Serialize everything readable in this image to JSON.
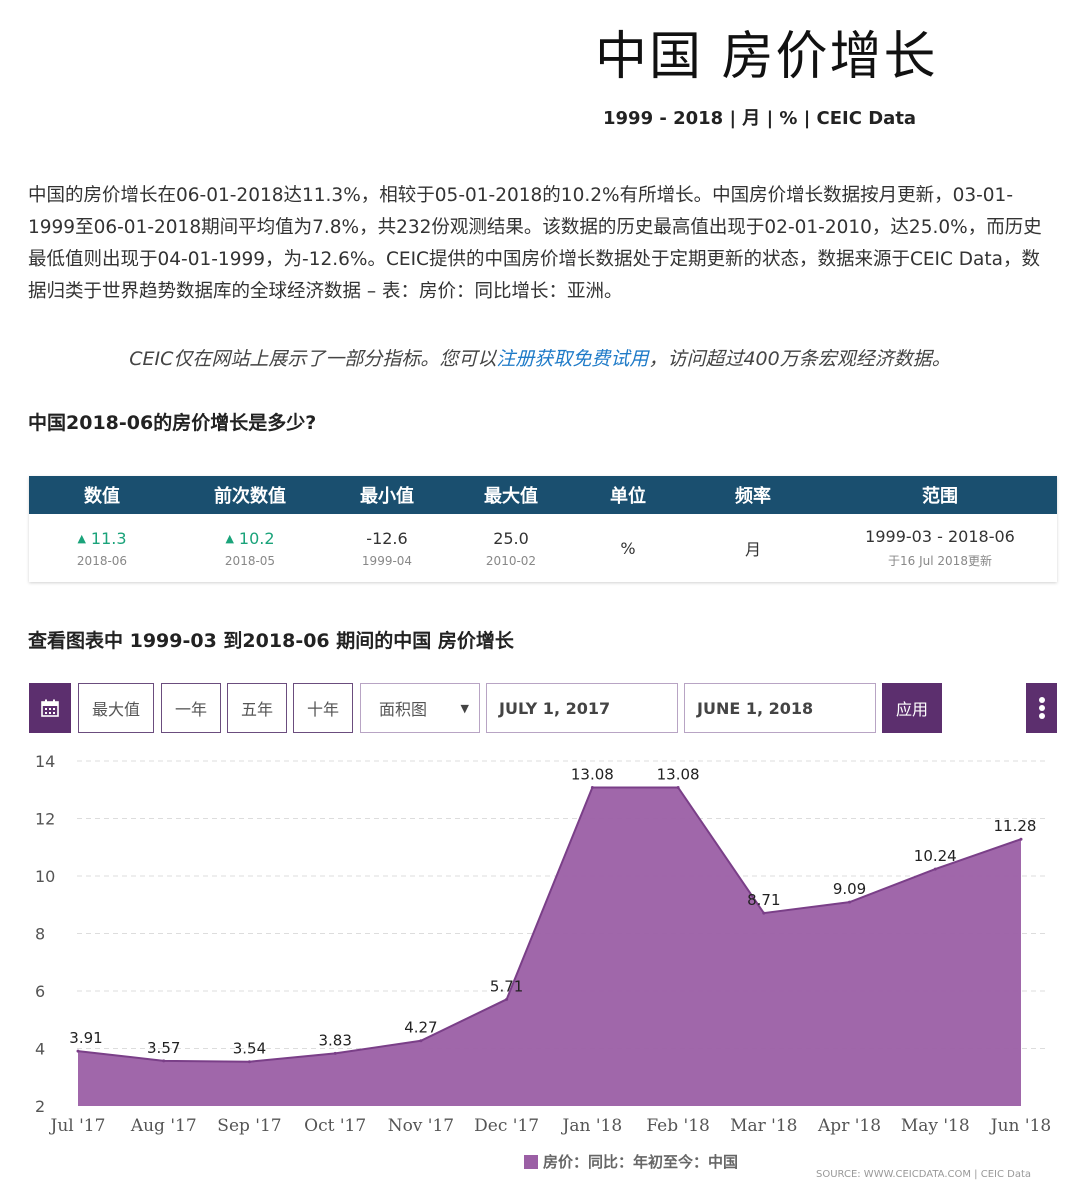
{
  "header": {
    "title": "中国 房价增长",
    "subtitle": "1999 - 2018 | 月 | % | CEIC Data"
  },
  "description": "中国的房价增长在06-01-2018达11.3%，相较于05-01-2018的10.2%有所增长。中国房价增长数据按月更新，03-01-1999至06-01-2018期间平均值为7.8%，共232份观测结果。该数据的历史最高值出现于02-01-2010，达25.0%，而历史最低值则出现于04-01-1999，为-12.6%。CEIC提供的中国房价增长数据处于定期更新的状态，数据来源于CEIC Data，数据归类于世界趋势数据库的全球经济数据 – 表：房价：同比增长：亚洲。",
  "promo": {
    "before": "CEIC仅在网站上展示了一部分指标。您可以",
    "link": "注册获取免费试用",
    "after": "，访问超过400万条宏观经济数据。"
  },
  "question": "中国2018-06的房价增长是多少?",
  "stats": {
    "headers": [
      "数值",
      "前次数值",
      "最小值",
      "最大值",
      "单位",
      "频率",
      "范围"
    ],
    "value": "11.3",
    "value_date": "2018-06",
    "prev": "10.2",
    "prev_date": "2018-05",
    "min": "-12.6",
    "min_date": "1999-04",
    "max": "25.0",
    "max_date": "2010-02",
    "unit": "%",
    "freq": "月",
    "range": "1999-03 - 2018-06",
    "updated": "于16 Jul 2018更新",
    "up_color": "#1aa37a",
    "header_color": "#1a4f6f"
  },
  "chart_title": "查看图表中 1999-03 到2018-06 期间的中国 房价增长",
  "toolbar": {
    "calendar_icon": "calendar-icon",
    "max": "最大值",
    "one_year": "一年",
    "five_year": "五年",
    "ten_year": "十年",
    "chart_type": "面积图",
    "start_date": "JULY 1, 2017",
    "end_date": "JUNE 1, 2018",
    "apply": "应用",
    "menu_icon": "kebab-menu-icon"
  },
  "chart_data": {
    "type": "area",
    "x": [
      "Jul '17",
      "Aug '17",
      "Sep '17",
      "Oct '17",
      "Nov '17",
      "Dec '17",
      "Jan '18",
      "Feb '18",
      "Mar '18",
      "Apr '18",
      "May '18",
      "Jun '18"
    ],
    "series": [
      {
        "name": "房价：同比：年初至今：中国",
        "values": [
          3.91,
          3.57,
          3.54,
          3.83,
          4.27,
          5.71,
          13.08,
          13.08,
          8.71,
          9.09,
          10.24,
          11.28
        ],
        "color": "#9b5fa5"
      }
    ],
    "data_labels": [
      "3.91",
      "3.57",
      "3.54",
      "3.83",
      "4.27",
      "5.71",
      "13.08",
      "13.08",
      "8.71",
      "9.09",
      "10.24",
      "11.28"
    ],
    "yticks": [
      "2",
      "4",
      "6",
      "8",
      "10",
      "12",
      "14"
    ],
    "ylim": [
      2,
      14
    ],
    "grid": true,
    "legend_position": "bottom-center",
    "source": "SOURCE: WWW.CEICDATA.COM | CEIC Data"
  }
}
